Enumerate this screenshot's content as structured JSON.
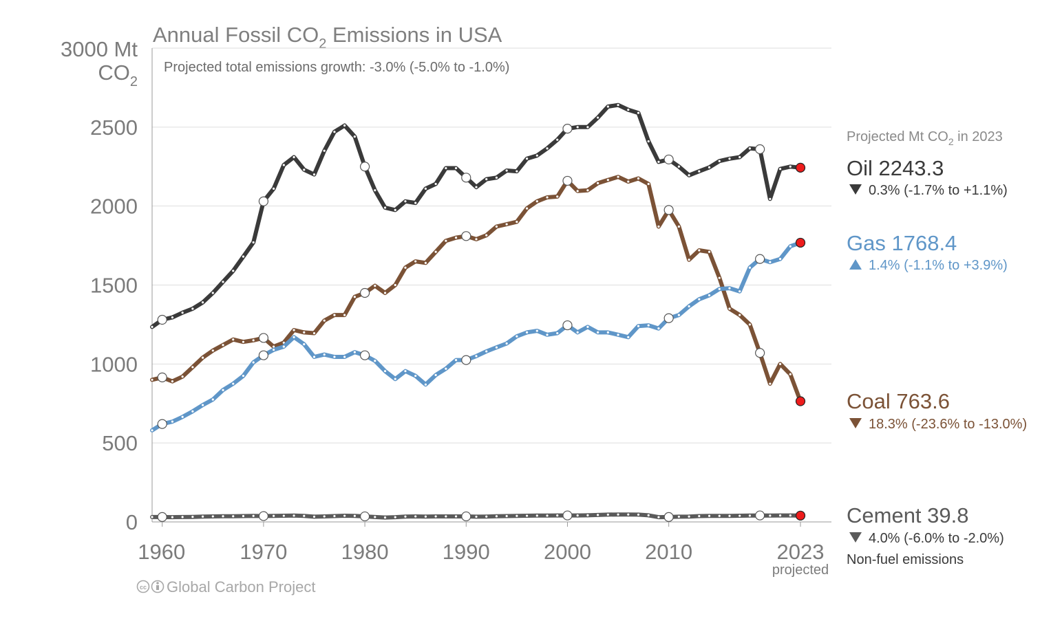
{
  "colors": {
    "oil": "#3a3a3a",
    "coal": "#7b5236",
    "gas": "#5f96c8",
    "cement": "#5a5a5a",
    "projected_point": "#ee1c1c",
    "oil_label": "#3a3a3a",
    "cement_label": "#5a5a5a"
  },
  "chart_data": {
    "type": "line",
    "title_main": "Annual Fossil CO",
    "title_sub": "2",
    "title_rest": " Emissions in USA",
    "subtitle": "Projected total emissions growth: -3.0% (-5.0% to -1.0%)",
    "y_unit_line1": "3000 Mt",
    "y_unit_line2_main": "CO",
    "y_unit_line2_sub": "2",
    "ylim": [
      0,
      3000
    ],
    "xlim": [
      1959,
      2023
    ],
    "y_ticks": [
      "0",
      "500",
      "1000",
      "1500",
      "2000",
      "2500"
    ],
    "y_tick_values": [
      0,
      500,
      1000,
      1500,
      2000,
      2500
    ],
    "x_ticks": [
      "1960",
      "1970",
      "1980",
      "1990",
      "2000",
      "2010",
      "2023"
    ],
    "x_tick_values": [
      1960,
      1970,
      1980,
      1990,
      2000,
      2010,
      2023
    ],
    "x_note": "projected",
    "grid": true,
    "projected_header_main": "Projected Mt CO",
    "projected_header_sub": "2",
    "projected_header_rest": " in 2023",
    "x": [
      1959,
      1960,
      1961,
      1962,
      1963,
      1964,
      1965,
      1966,
      1967,
      1968,
      1969,
      1970,
      1971,
      1972,
      1973,
      1974,
      1975,
      1976,
      1977,
      1978,
      1979,
      1980,
      1981,
      1982,
      1983,
      1984,
      1985,
      1986,
      1987,
      1988,
      1989,
      1990,
      1991,
      1992,
      1993,
      1994,
      1995,
      1996,
      1997,
      1998,
      1999,
      2000,
      2001,
      2002,
      2003,
      2004,
      2005,
      2006,
      2007,
      2008,
      2009,
      2010,
      2011,
      2012,
      2013,
      2014,
      2015,
      2016,
      2017,
      2018,
      2019,
      2020,
      2021,
      2022,
      2023
    ],
    "series": [
      {
        "key": "oil",
        "name": "Oil",
        "value_label": "2243.3",
        "change_label": "0.3% (-1.7% to +1.1%)",
        "direction": "down",
        "values": [
          1235,
          1280,
          1295,
          1325,
          1350,
          1390,
          1450,
          1520,
          1590,
          1680,
          1770,
          2030,
          2110,
          2260,
          2310,
          2230,
          2200,
          2350,
          2470,
          2510,
          2440,
          2250,
          2100,
          1990,
          1975,
          2030,
          2020,
          2110,
          2140,
          2240,
          2240,
          2180,
          2120,
          2170,
          2180,
          2225,
          2220,
          2300,
          2320,
          2365,
          2420,
          2490,
          2500,
          2500,
          2560,
          2630,
          2640,
          2610,
          2590,
          2410,
          2280,
          2295,
          2250,
          2195,
          2220,
          2245,
          2285,
          2300,
          2310,
          2365,
          2360,
          2045,
          2235,
          2250,
          2243
        ]
      },
      {
        "key": "coal",
        "name": "Coal",
        "value_label": "763.6",
        "change_label": "18.3% (-23.6% to -13.0%)",
        "direction": "down",
        "values": [
          900,
          915,
          890,
          920,
          980,
          1040,
          1085,
          1120,
          1155,
          1140,
          1150,
          1165,
          1110,
          1135,
          1215,
          1200,
          1195,
          1275,
          1310,
          1310,
          1425,
          1450,
          1495,
          1450,
          1500,
          1610,
          1650,
          1640,
          1710,
          1780,
          1800,
          1810,
          1790,
          1815,
          1870,
          1885,
          1900,
          1985,
          2030,
          2055,
          2060,
          2160,
          2095,
          2100,
          2145,
          2165,
          2185,
          2155,
          2175,
          2140,
          1870,
          1975,
          1870,
          1660,
          1720,
          1710,
          1545,
          1350,
          1310,
          1250,
          1070,
          875,
          1000,
          935,
          764
        ]
      },
      {
        "key": "gas",
        "name": "Gas",
        "value_label": "1768.4",
        "change_label": "1.4% (-1.1% to +3.9%)",
        "direction": "up",
        "values": [
          580,
          620,
          635,
          665,
          700,
          740,
          775,
          835,
          875,
          925,
          1010,
          1055,
          1090,
          1110,
          1170,
          1125,
          1045,
          1060,
          1045,
          1045,
          1075,
          1055,
          1020,
          955,
          905,
          955,
          925,
          870,
          930,
          970,
          1025,
          1025,
          1050,
          1080,
          1105,
          1130,
          1175,
          1200,
          1210,
          1185,
          1195,
          1245,
          1200,
          1235,
          1200,
          1200,
          1185,
          1170,
          1240,
          1245,
          1225,
          1290,
          1310,
          1365,
          1410,
          1435,
          1475,
          1480,
          1460,
          1610,
          1665,
          1645,
          1665,
          1745,
          1768
        ]
      },
      {
        "key": "cement",
        "name": "Cement",
        "value_label": "39.8",
        "change_label": "4.0% (-6.0% to -2.0%)",
        "direction": "down",
        "note": "Non-fuel emissions",
        "values": [
          31,
          31,
          30,
          31,
          32,
          34,
          35,
          36,
          36,
          37,
          38,
          37,
          38,
          39,
          40,
          38,
          33,
          35,
          37,
          39,
          38,
          35,
          31,
          28,
          30,
          34,
          35,
          34,
          35,
          35,
          35,
          35,
          33,
          34,
          36,
          37,
          38,
          39,
          40,
          40,
          41,
          41,
          41,
          42,
          44,
          46,
          47,
          47,
          46,
          42,
          30,
          31,
          33,
          34,
          37,
          38,
          38,
          38,
          39,
          40,
          41,
          40,
          41,
          41,
          40
        ]
      }
    ]
  },
  "credit": {
    "icon_text": "cc",
    "text": "Global Carbon Project"
  }
}
